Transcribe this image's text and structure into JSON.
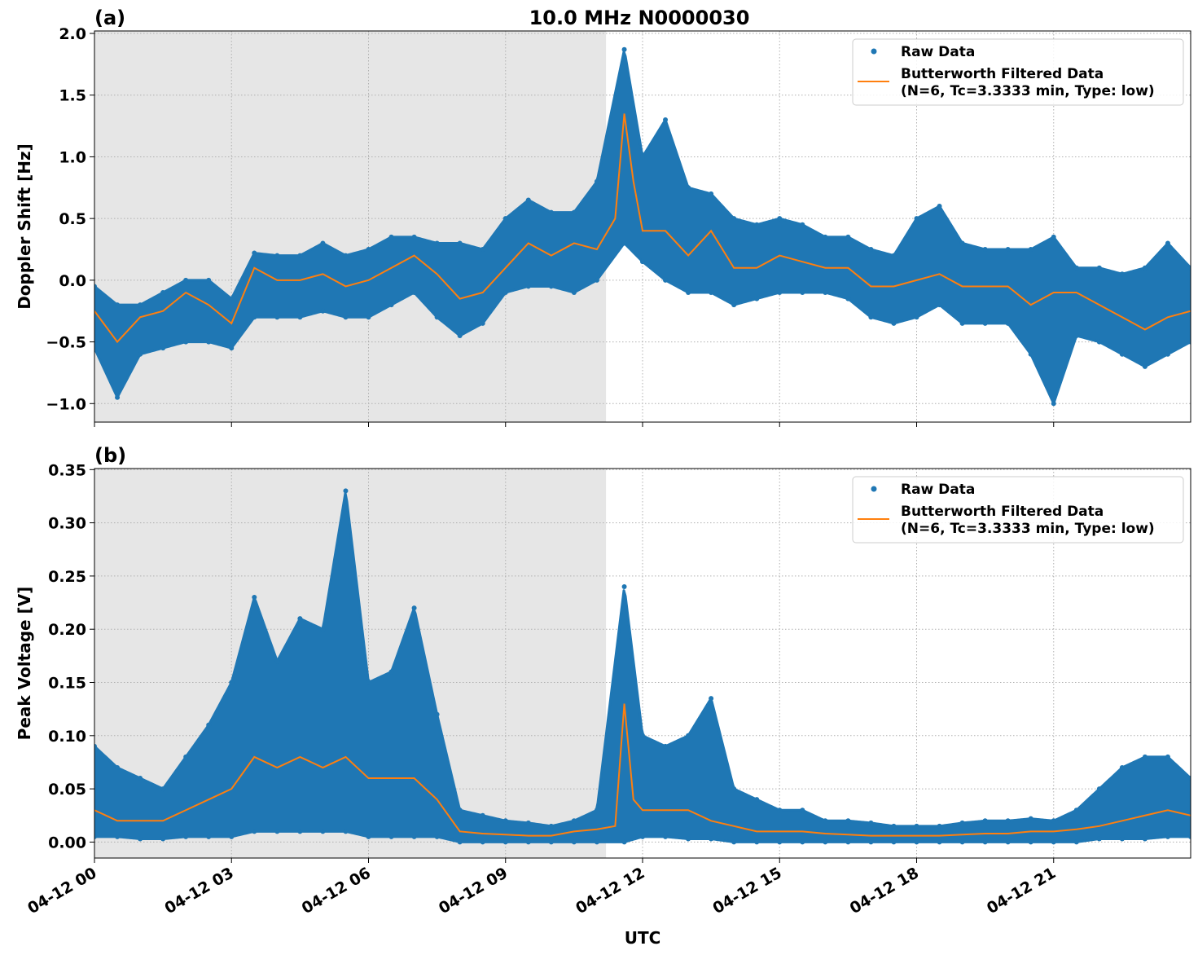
{
  "title": "10.0 MHz N0000030",
  "xlabel": "UTC",
  "x_tick_labels": [
    "04-12 00",
    "04-12 03",
    "04-12 06",
    "04-12 09",
    "04-12 12",
    "04-12 15",
    "04-12 18",
    "04-12 21"
  ],
  "colors": {
    "raw": "#1f77b4",
    "filtered": "#ff7f0e",
    "shade": "#e6e6e6"
  },
  "chart_data": [
    {
      "type": "scatter",
      "panel_label": "(a)",
      "ylabel": "Doppler Shift [Hz]",
      "x_unit": "hours UTC on 04-12",
      "xlim": [
        0,
        24
      ],
      "ylim": [
        -1.15,
        2.02
      ],
      "y_ticks": [
        -1.0,
        -0.5,
        0.0,
        0.5,
        1.0,
        1.5,
        2.0
      ],
      "y_tick_labels": [
        "−1.0",
        "−0.5",
        "0.0",
        "0.5",
        "1.0",
        "1.5",
        "2.0"
      ],
      "grid": true,
      "shaded_x_range": [
        0,
        11.2
      ],
      "legend": {
        "position": "top-right",
        "entries": [
          "Raw Data",
          "Butterworth Filtered Data",
          "(N=6, Tc=3.3333 min, Type: low)"
        ]
      },
      "series": [
        {
          "name": "Raw Data",
          "kind": "scatter-envelope",
          "x": [
            0,
            0.5,
            1,
            1.5,
            2,
            2.5,
            3,
            3.5,
            4,
            4.5,
            5,
            5.5,
            6,
            6.5,
            7,
            7.5,
            8,
            8.5,
            9,
            9.5,
            10,
            10.5,
            11,
            11.6,
            12,
            12.5,
            13,
            13.5,
            14,
            14.5,
            15,
            15.5,
            16,
            16.5,
            17,
            17.5,
            18,
            18.5,
            19,
            19.5,
            20,
            20.5,
            21,
            21.5,
            22,
            22.5,
            23,
            23.5,
            24
          ],
          "low": [
            -0.55,
            -0.95,
            -0.6,
            -0.55,
            -0.5,
            -0.5,
            -0.55,
            -0.3,
            -0.3,
            -0.3,
            -0.25,
            -0.3,
            -0.3,
            -0.2,
            -0.1,
            -0.3,
            -0.45,
            -0.35,
            -0.1,
            -0.05,
            -0.05,
            -0.1,
            0.0,
            0.3,
            0.15,
            0.0,
            -0.1,
            -0.1,
            -0.2,
            -0.15,
            -0.1,
            -0.1,
            -0.1,
            -0.15,
            -0.3,
            -0.35,
            -0.3,
            -0.2,
            -0.35,
            -0.35,
            -0.35,
            -0.6,
            -1.0,
            -0.45,
            -0.5,
            -0.6,
            -0.7,
            -0.6,
            -0.5
          ],
          "high": [
            -0.05,
            -0.2,
            -0.2,
            -0.1,
            0.0,
            0.0,
            -0.15,
            0.22,
            0.2,
            0.2,
            0.3,
            0.2,
            0.25,
            0.35,
            0.35,
            0.3,
            0.3,
            0.25,
            0.5,
            0.65,
            0.55,
            0.55,
            0.8,
            1.87,
            1.0,
            1.3,
            0.75,
            0.7,
            0.5,
            0.45,
            0.5,
            0.45,
            0.35,
            0.35,
            0.25,
            0.2,
            0.5,
            0.6,
            0.3,
            0.25,
            0.25,
            0.25,
            0.35,
            0.1,
            0.1,
            0.05,
            0.1,
            0.3,
            0.1
          ]
        },
        {
          "name": "Butterworth Filtered Data",
          "kind": "line",
          "x": [
            0,
            0.5,
            1,
            1.5,
            2,
            2.5,
            3,
            3.5,
            4,
            4.5,
            5,
            5.5,
            6,
            6.5,
            7,
            7.5,
            8,
            8.5,
            9,
            9.5,
            10,
            10.5,
            11,
            11.4,
            11.6,
            11.8,
            12,
            12.5,
            13,
            13.5,
            14,
            14.5,
            15,
            15.5,
            16,
            16.5,
            17,
            17.5,
            18,
            18.5,
            19,
            19.5,
            20,
            20.5,
            21,
            21.5,
            22,
            22.5,
            23,
            23.5,
            24
          ],
          "y": [
            -0.25,
            -0.5,
            -0.3,
            -0.25,
            -0.1,
            -0.2,
            -0.35,
            0.1,
            0.0,
            0.0,
            0.05,
            -0.05,
            0.0,
            0.1,
            0.2,
            0.05,
            -0.15,
            -0.1,
            0.1,
            0.3,
            0.2,
            0.3,
            0.25,
            0.5,
            1.35,
            0.8,
            0.4,
            0.4,
            0.2,
            0.4,
            0.1,
            0.1,
            0.2,
            0.15,
            0.1,
            0.1,
            -0.05,
            -0.05,
            0.0,
            0.05,
            -0.05,
            -0.05,
            -0.05,
            -0.2,
            -0.1,
            -0.1,
            -0.2,
            -0.3,
            -0.4,
            -0.3,
            -0.25
          ]
        }
      ]
    },
    {
      "type": "scatter",
      "panel_label": "(b)",
      "ylabel": "Peak Voltage [V]",
      "x_unit": "hours UTC on 04-12",
      "xlim": [
        0,
        24
      ],
      "ylim": [
        -0.015,
        0.351
      ],
      "y_ticks": [
        0,
        0.05,
        0.1,
        0.15,
        0.2,
        0.25,
        0.3,
        0.35
      ],
      "y_tick_labels": [
        "0.00",
        "0.05",
        "0.10",
        "0.15",
        "0.20",
        "0.25",
        "0.30",
        "0.35"
      ],
      "grid": true,
      "shaded_x_range": [
        0,
        11.2
      ],
      "legend": {
        "position": "top-right",
        "entries": [
          "Raw Data",
          "Butterworth Filtered Data",
          "(N=6, Tc=3.3333 min, Type: low)"
        ]
      },
      "series": [
        {
          "name": "Raw Data",
          "kind": "scatter-envelope",
          "x": [
            0,
            0.5,
            1,
            1.5,
            2,
            2.5,
            3,
            3.5,
            4,
            4.5,
            5,
            5.5,
            6,
            6.5,
            7,
            7.5,
            8,
            8.5,
            9,
            9.5,
            10,
            10.5,
            11,
            11.6,
            12,
            12.5,
            13,
            13.5,
            14,
            14.5,
            15,
            15.5,
            16,
            16.5,
            17,
            17.5,
            18,
            18.5,
            19,
            19.5,
            20,
            20.5,
            21,
            21.5,
            22,
            22.5,
            23,
            23.5,
            24
          ],
          "low": [
            0.005,
            0.005,
            0.003,
            0.003,
            0.005,
            0.005,
            0.005,
            0.01,
            0.01,
            0.01,
            0.01,
            0.01,
            0.005,
            0.005,
            0.005,
            0.005,
            0,
            0,
            0,
            0,
            0,
            0,
            0,
            0,
            0.005,
            0.005,
            0.003,
            0.003,
            0,
            0,
            0,
            0,
            0,
            0,
            0,
            0,
            0,
            0,
            0,
            0,
            0,
            0,
            0,
            0,
            0.003,
            0.003,
            0.003,
            0.005,
            0.005
          ],
          "high": [
            0.09,
            0.07,
            0.06,
            0.05,
            0.08,
            0.11,
            0.15,
            0.23,
            0.17,
            0.21,
            0.2,
            0.33,
            0.15,
            0.16,
            0.22,
            0.12,
            0.03,
            0.025,
            0.02,
            0.018,
            0.015,
            0.02,
            0.03,
            0.24,
            0.1,
            0.09,
            0.1,
            0.135,
            0.05,
            0.04,
            0.03,
            0.03,
            0.02,
            0.02,
            0.018,
            0.015,
            0.015,
            0.015,
            0.018,
            0.02,
            0.02,
            0.022,
            0.02,
            0.03,
            0.05,
            0.07,
            0.08,
            0.08,
            0.06
          ]
        },
        {
          "name": "Butterworth Filtered Data",
          "kind": "line",
          "x": [
            0,
            0.5,
            1,
            1.5,
            2,
            2.5,
            3,
            3.5,
            4,
            4.5,
            5,
            5.5,
            6,
            6.5,
            7,
            7.5,
            8,
            8.5,
            9,
            9.5,
            10,
            10.5,
            11,
            11.4,
            11.6,
            11.8,
            12,
            12.5,
            13,
            13.5,
            14,
            14.5,
            15,
            15.5,
            16,
            16.5,
            17,
            17.5,
            18,
            18.5,
            19,
            19.5,
            20,
            20.5,
            21,
            21.5,
            22,
            22.5,
            23,
            23.5,
            24
          ],
          "y": [
            0.03,
            0.02,
            0.02,
            0.02,
            0.03,
            0.04,
            0.05,
            0.08,
            0.07,
            0.08,
            0.07,
            0.08,
            0.06,
            0.06,
            0.06,
            0.04,
            0.01,
            0.008,
            0.007,
            0.006,
            0.006,
            0.01,
            0.012,
            0.015,
            0.13,
            0.04,
            0.03,
            0.03,
            0.03,
            0.02,
            0.015,
            0.01,
            0.01,
            0.01,
            0.008,
            0.007,
            0.006,
            0.006,
            0.006,
            0.006,
            0.007,
            0.008,
            0.008,
            0.01,
            0.01,
            0.012,
            0.015,
            0.02,
            0.025,
            0.03,
            0.025
          ]
        }
      ]
    }
  ]
}
